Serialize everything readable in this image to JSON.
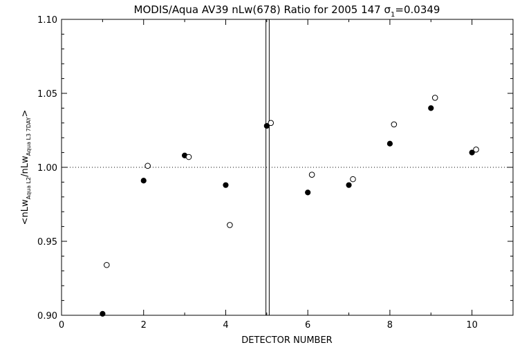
{
  "chart_data": {
    "type": "scatter",
    "title": "MODIS/Aqua AV39 nLw(678) Ratio for 2005 147 σ",
    "title_sub": "1",
    "title_suffix": "=0.0349",
    "xlabel": "DETECTOR NUMBER",
    "ylabel": {
      "open": "<nLw",
      "sub1": "Aqua L2",
      "mid": "/nLw",
      "sub2": "Aqua L3 7DAY",
      "close": ">"
    },
    "xlim": [
      0,
      11
    ],
    "ylim": [
      0.9,
      1.1
    ],
    "x_ticks": [
      0,
      2,
      4,
      6,
      8,
      10
    ],
    "x_tick_labels": [
      "0",
      "2",
      "4",
      "6",
      "8",
      "10"
    ],
    "y_ticks": [
      0.9,
      0.95,
      1.0,
      1.05,
      1.1
    ],
    "y_tick_labels": [
      "0.90",
      "0.95",
      "1.00",
      "1.05",
      "1.10"
    ],
    "reference_line": 1.0,
    "vertical_lines": [
      4.98,
      5.06
    ],
    "grid": false,
    "series": [
      {
        "marker": "filled-circle",
        "x": [
          1,
          2,
          3,
          4,
          5,
          6,
          7,
          8,
          9,
          10
        ],
        "y": [
          0.901,
          0.991,
          1.008,
          0.988,
          1.028,
          0.983,
          0.988,
          1.016,
          1.04,
          1.01
        ]
      },
      {
        "marker": "open-circle",
        "x": [
          1.1,
          2.1,
          3.1,
          4.1,
          5.1,
          6.1,
          7.1,
          8.1,
          9.1,
          10.1
        ],
        "y": [
          0.934,
          1.001,
          1.007,
          0.961,
          1.03,
          0.995,
          0.992,
          1.029,
          1.047,
          1.012
        ]
      }
    ]
  }
}
